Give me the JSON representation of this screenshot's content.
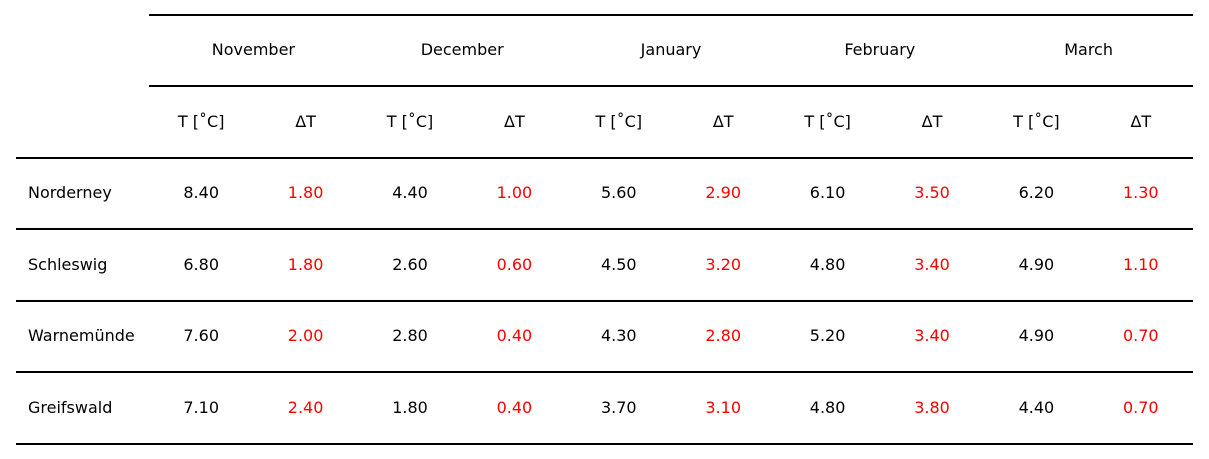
{
  "chart_data": {
    "type": "table",
    "months": [
      "November",
      "December",
      "January",
      "February",
      "March"
    ],
    "subheaders": [
      "T [$^\\circ$C]",
      "ΔT"
    ],
    "subheader_display": [
      "T [˚C]",
      "ΔT"
    ],
    "rows": [
      {
        "station": "Norderney",
        "values": [
          "8.40",
          "1.80",
          "4.40",
          "1.00",
          "5.60",
          "2.90",
          "6.10",
          "3.50",
          "6.20",
          "1.30"
        ]
      },
      {
        "station": "Schleswig",
        "values": [
          "6.80",
          "1.80",
          "2.60",
          "0.60",
          "4.50",
          "3.20",
          "4.80",
          "3.40",
          "4.90",
          "1.10"
        ]
      },
      {
        "station": "Warnemünde",
        "values": [
          "7.60",
          "2.00",
          "2.80",
          "0.40",
          "4.30",
          "2.80",
          "5.20",
          "3.40",
          "4.90",
          "0.70"
        ]
      },
      {
        "station": "Greifswald",
        "values": [
          "7.10",
          "2.40",
          "1.80",
          "0.40",
          "3.70",
          "3.10",
          "4.80",
          "3.80",
          "4.40",
          "0.70"
        ]
      }
    ]
  },
  "colors": {
    "temperature": "#000000",
    "delta": "#ff0000",
    "rule": "#000000"
  }
}
